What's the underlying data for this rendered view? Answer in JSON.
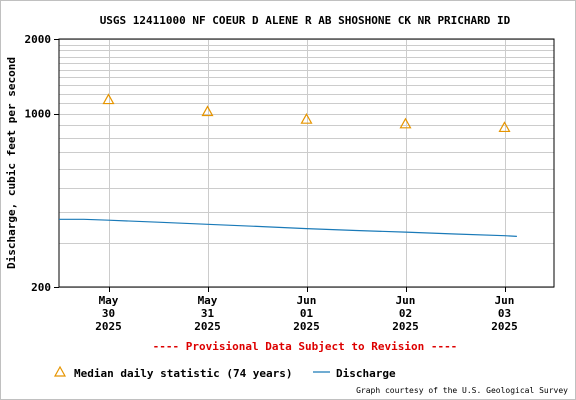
{
  "chart_data": {
    "type": "line",
    "title": "USGS 12411000 NF COEUR D ALENE R AB SHOSHONE CK NR PRICHARD ID",
    "xlabel": "",
    "ylabel": "Discharge, cubic feet per second",
    "y_scale": "log",
    "ylim": [
      200,
      2000
    ],
    "y_ticks": [
      {
        "value": 200,
        "label": "200"
      },
      {
        "value": 1000,
        "label": "1000"
      },
      {
        "value": 2000,
        "label": "2000"
      }
    ],
    "y_minor_grid": [
      300,
      400,
      500,
      600,
      700,
      800,
      900,
      1100,
      1200,
      1300,
      1400,
      1500,
      1600,
      1700,
      1800,
      1900
    ],
    "xlim": [
      "2025-05-29T12:00",
      "2025-06-03T12:00"
    ],
    "x_ticks": [
      {
        "x": "2025-05-30T00:00",
        "lines": [
          "May",
          "30",
          "2025"
        ]
      },
      {
        "x": "2025-05-31T00:00",
        "lines": [
          "May",
          "31",
          "2025"
        ]
      },
      {
        "x": "2025-06-01T00:00",
        "lines": [
          "Jun",
          "01",
          "2025"
        ]
      },
      {
        "x": "2025-06-02T00:00",
        "lines": [
          "Jun",
          "02",
          "2025"
        ]
      },
      {
        "x": "2025-06-03T00:00",
        "lines": [
          "Jun",
          "03",
          "2025"
        ]
      }
    ],
    "grid": true,
    "series": [
      {
        "name": "Median daily statistic (74 years)",
        "type": "scatter",
        "marker": "triangle",
        "color": "#e69500",
        "points": [
          {
            "x": "2025-05-30T00:00",
            "y": 1140
          },
          {
            "x": "2025-05-31T00:00",
            "y": 1020
          },
          {
            "x": "2025-06-01T00:00",
            "y": 950
          },
          {
            "x": "2025-06-02T00:00",
            "y": 910
          },
          {
            "x": "2025-06-03T00:00",
            "y": 880
          }
        ]
      },
      {
        "name": "Discharge",
        "type": "line",
        "color": "#1a7ab8",
        "points": [
          {
            "x": "2025-05-29T12:00",
            "y": 375
          },
          {
            "x": "2025-05-29T18:00",
            "y": 375
          },
          {
            "x": "2025-05-30T00:00",
            "y": 372
          },
          {
            "x": "2025-05-30T12:00",
            "y": 365
          },
          {
            "x": "2025-05-31T00:00",
            "y": 358
          },
          {
            "x": "2025-05-31T12:00",
            "y": 351
          },
          {
            "x": "2025-06-01T00:00",
            "y": 344
          },
          {
            "x": "2025-06-01T12:00",
            "y": 338
          },
          {
            "x": "2025-06-02T00:00",
            "y": 333
          },
          {
            "x": "2025-06-02T12:00",
            "y": 327
          },
          {
            "x": "2025-06-03T00:00",
            "y": 322
          },
          {
            "x": "2025-06-03T03:00",
            "y": 320
          }
        ]
      }
    ],
    "annotation": "---- Provisional Data Subject to Revision ----",
    "legend": {
      "position": "bottom",
      "items": [
        {
          "label": "Median daily statistic (74 years)",
          "symbol": "triangle",
          "color": "#e69500"
        },
        {
          "label": "Discharge",
          "symbol": "line",
          "color": "#1a7ab8"
        }
      ]
    },
    "credit": "Graph courtesy of the U.S. Geological Survey"
  }
}
